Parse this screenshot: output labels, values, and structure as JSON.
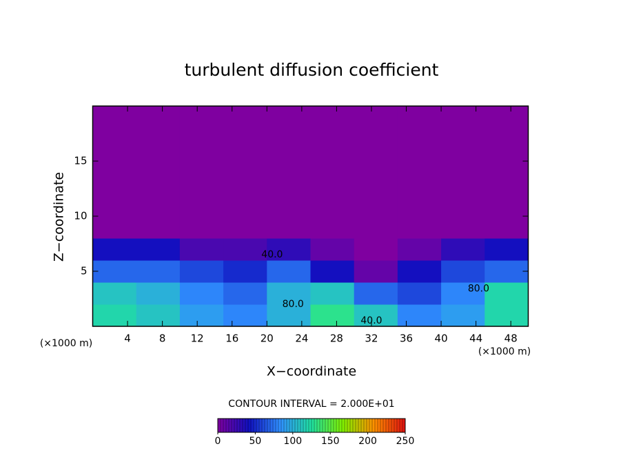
{
  "chart_data": {
    "type": "contour",
    "title": "turbulent diffusion coefficient",
    "xlabel": "X−coordinate",
    "ylabel": "Z−coordinate",
    "xunit": "(×1000 m)",
    "yunit": "(×1000 m)",
    "subtitle": "CONTOUR INTERVAL = 2.000E+01",
    "xlim": [
      0,
      50
    ],
    "ylim": [
      0,
      20
    ],
    "xticks": [
      4,
      8,
      12,
      16,
      20,
      24,
      28,
      32,
      36,
      40,
      44,
      48
    ],
    "yticks": [
      5,
      10,
      15
    ],
    "x": [
      0,
      5,
      10,
      15,
      20,
      25,
      30,
      35,
      40,
      45,
      50
    ],
    "y": [
      0,
      2,
      4,
      6,
      8,
      20
    ],
    "z": [
      [
        120,
        110,
        90,
        80,
        100,
        130,
        110,
        80,
        90,
        120
      ],
      [
        110,
        100,
        80,
        70,
        100,
        110,
        70,
        60,
        80,
        120
      ],
      [
        70,
        70,
        60,
        50,
        70,
        40,
        10,
        40,
        60,
        70
      ],
      [
        40,
        40,
        20,
        20,
        30,
        10,
        0,
        10,
        30,
        40
      ],
      [
        0,
        0,
        0,
        0,
        0,
        0,
        0,
        0,
        0,
        0
      ]
    ],
    "contour_labels": [
      {
        "value": 40,
        "label": "40.0",
        "x": 20.6,
        "y": 6.5
      },
      {
        "value": 80,
        "label": "80.0",
        "x": 23,
        "y": 2
      },
      {
        "value": 80,
        "label": "80.0",
        "x": 44.3,
        "y": 3.4
      },
      {
        "value": 40,
        "label": "40.0",
        "x": 32,
        "y": 0.5
      }
    ],
    "clim": [
      0,
      250
    ],
    "cticks": [
      0,
      50,
      100,
      150,
      200,
      250
    ],
    "colormap": [
      "#7f00a0",
      "#1010c0",
      "#3090ff",
      "#20e0a0",
      "#80f000",
      "#ff9000",
      "#e01010"
    ]
  }
}
